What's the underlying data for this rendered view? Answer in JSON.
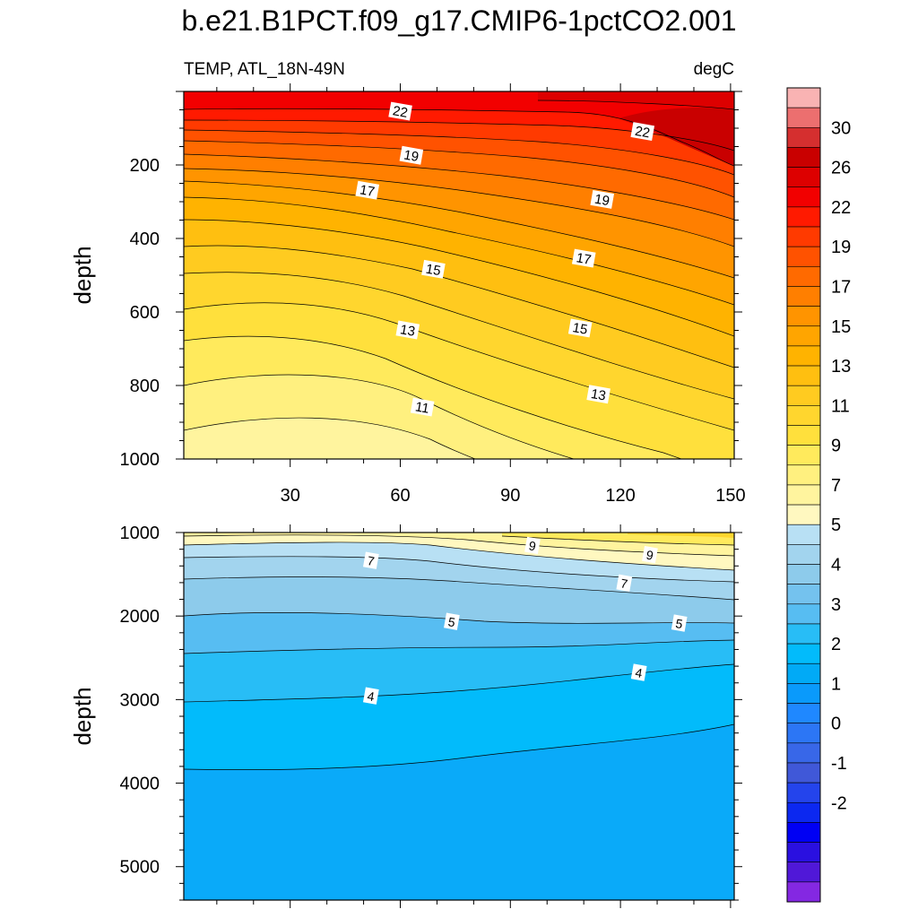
{
  "title": "b.e21.B1PCT.f09_g17.CMIP6-1pctCO2.001",
  "chart_data": [
    {
      "type": "contour",
      "panel": "upper",
      "left_label": "TEMP, ATL_18N-49N",
      "right_label": "degC",
      "ylabel": "depth",
      "xlim": [
        1,
        151
      ],
      "ylim": [
        0,
        1000
      ],
      "y_inverted": true,
      "x_ticks": [
        30,
        60,
        90,
        120,
        150
      ],
      "y_ticks": [
        200,
        400,
        600,
        800,
        1000
      ],
      "contour_labels": [
        {
          "text": "22",
          "x": 60,
          "depth": 55
        },
        {
          "text": "22",
          "x": 126,
          "depth": 110
        },
        {
          "text": "19",
          "x": 63,
          "depth": 175
        },
        {
          "text": "19",
          "x": 115,
          "depth": 295
        },
        {
          "text": "17",
          "x": 51,
          "depth": 270
        },
        {
          "text": "17",
          "x": 110,
          "depth": 455
        },
        {
          "text": "15",
          "x": 69,
          "depth": 485
        },
        {
          "text": "15",
          "x": 109,
          "depth": 645
        },
        {
          "text": "13",
          "x": 62,
          "depth": 650
        },
        {
          "text": "13",
          "x": 114,
          "depth": 825
        },
        {
          "text": "11",
          "x": 66,
          "depth": 860
        }
      ]
    },
    {
      "type": "contour",
      "panel": "lower",
      "ylabel": "depth",
      "xlim": [
        1,
        151
      ],
      "ylim": [
        1000,
        5400
      ],
      "y_inverted": true,
      "y_ticks": [
        1000,
        2000,
        3000,
        4000,
        5000
      ],
      "contour_labels": [
        {
          "text": "9",
          "x": 96,
          "depth": 1160
        },
        {
          "text": "9",
          "x": 128,
          "depth": 1270
        },
        {
          "text": "7",
          "x": 52,
          "depth": 1340
        },
        {
          "text": "7",
          "x": 121,
          "depth": 1610
        },
        {
          "text": "5",
          "x": 74,
          "depth": 2070
        },
        {
          "text": "5",
          "x": 136,
          "depth": 2090
        },
        {
          "text": "4",
          "x": 52,
          "depth": 2960
        },
        {
          "text": "4",
          "x": 125,
          "depth": 2680
        }
      ]
    }
  ],
  "colorbar": {
    "labels": [
      "30",
      "26",
      "22",
      "19",
      "17",
      "15",
      "13",
      "11",
      "9",
      "7",
      "5",
      "4",
      "3",
      "2",
      "1",
      "0",
      "-1",
      "-2"
    ],
    "colors": [
      "#f9b3b3",
      "#ec6f6f",
      "#d52f2f",
      "#c90000",
      "#dd0000",
      "#f20000",
      "#ff1a00",
      "#ff3a00",
      "#ff5200",
      "#ff6a00",
      "#ff7f00",
      "#ff9400",
      "#ffa500",
      "#ffb300",
      "#ffbf10",
      "#ffcb20",
      "#ffd62e",
      "#ffe03c",
      "#ffea5c",
      "#fff07f",
      "#fff49e",
      "#fff8c0",
      "#b8e0f4",
      "#a2d4ee",
      "#8dcbeb",
      "#74c2ee",
      "#57bdf2",
      "#28bdf6",
      "#02bbfb",
      "#01aaf6",
      "#0a9afb",
      "#1f88ff",
      "#2c76f5",
      "#3867e8",
      "#4058d8",
      "#2444ec",
      "#0c28f0",
      "#0000f4",
      "#2a10e0",
      "#5018d8",
      "#8428e2"
    ]
  }
}
